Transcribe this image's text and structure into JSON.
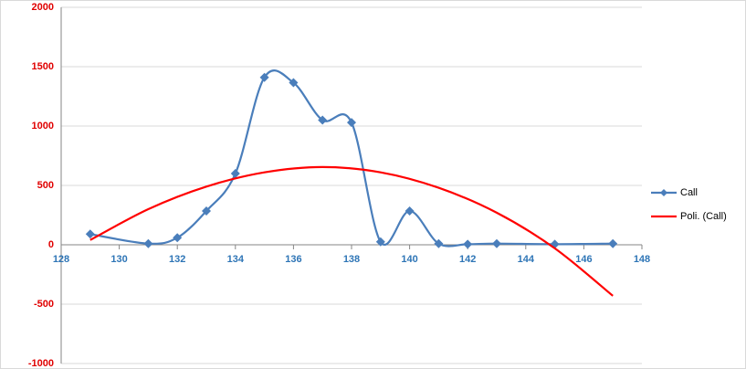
{
  "chart_data": {
    "type": "scatter",
    "x": [
      129,
      131,
      132,
      133,
      134,
      135,
      136,
      137,
      138,
      139,
      140,
      141,
      142,
      143,
      145,
      147
    ],
    "series": [
      {
        "name": "Call",
        "color": "#4a7ebb",
        "x": [
          129,
          131,
          132,
          133,
          134,
          135,
          136,
          137,
          138,
          139,
          140,
          141,
          142,
          143,
          145,
          147
        ],
        "values": [
          90,
          10,
          60,
          285,
          600,
          1410,
          1365,
          1050,
          1030,
          25,
          285,
          10,
          5,
          10,
          5,
          10
        ],
        "marker": "diamond"
      },
      {
        "name": "Poli. (Call)",
        "color": "#ff0000",
        "x": [
          129,
          131,
          133,
          135,
          137,
          139,
          141,
          143,
          145,
          147
        ],
        "values": [
          40,
          300,
          490,
          610,
          655,
          610,
          480,
          270,
          -30,
          -430
        ],
        "marker": "none"
      }
    ],
    "xlim": [
      128,
      148
    ],
    "xticks": [
      128,
      130,
      132,
      134,
      136,
      138,
      140,
      142,
      144,
      146,
      148
    ],
    "ylim": [
      -1000,
      2000
    ],
    "yticks": [
      -1000,
      -500,
      0,
      500,
      1000,
      1500,
      2000
    ],
    "grid": true,
    "legend": "right",
    "xtick_color": "#2e75b6",
    "ytick_color": "#e00000"
  }
}
